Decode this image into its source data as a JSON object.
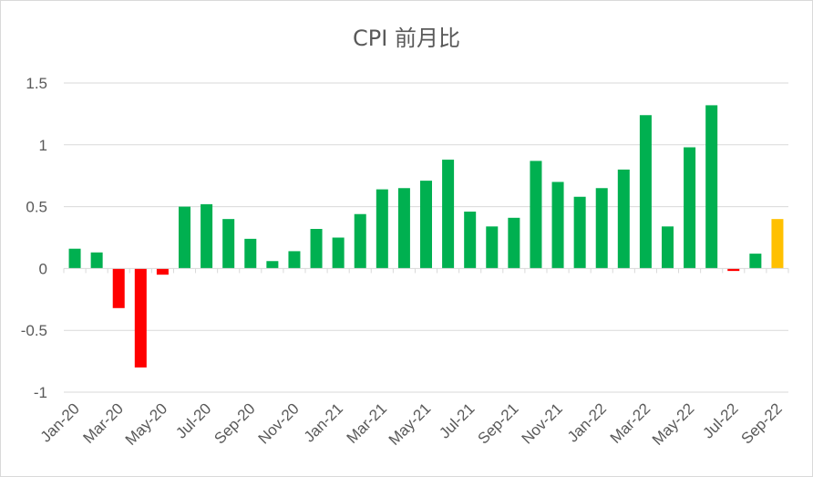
{
  "chart_data": {
    "type": "bar",
    "title": "CPI 前月比",
    "xlabel": "",
    "ylabel": "",
    "ylim": [
      -1,
      1.5
    ],
    "yticks": [
      "1.5",
      "1",
      "0.5",
      "0",
      "-0.5",
      "-1"
    ],
    "ytick_values": [
      1.5,
      1,
      0.5,
      0,
      -0.5,
      -1
    ],
    "grid": true,
    "legend": "none",
    "categories": [
      "Jan-20",
      "Feb-20",
      "Mar-20",
      "Apr-20",
      "May-20",
      "Jun-20",
      "Jul-20",
      "Aug-20",
      "Sep-20",
      "Oct-20",
      "Nov-20",
      "Dec-20",
      "Jan-21",
      "Feb-21",
      "Mar-21",
      "Apr-21",
      "May-21",
      "Jun-21",
      "Jul-21",
      "Aug-21",
      "Sep-21",
      "Oct-21",
      "Nov-21",
      "Dec-21",
      "Jan-22",
      "Feb-22",
      "Mar-22",
      "Apr-22",
      "May-22",
      "Jun-22",
      "Jul-22",
      "Aug-22",
      "Sep-22"
    ],
    "xtick_labels": [
      "Jan-20",
      "Mar-20",
      "May-20",
      "Jul-20",
      "Sep-20",
      "Nov-20",
      "Jan-21",
      "Mar-21",
      "May-21",
      "Jul-21",
      "Sep-21",
      "Nov-21",
      "Jan-22",
      "Mar-22",
      "May-22",
      "Jul-22",
      "Sep-22"
    ],
    "values": [
      0.16,
      0.13,
      -0.32,
      -0.8,
      -0.05,
      0.5,
      0.52,
      0.4,
      0.24,
      0.06,
      0.14,
      0.32,
      0.25,
      0.44,
      0.64,
      0.65,
      0.71,
      0.88,
      0.46,
      0.34,
      0.41,
      0.87,
      0.7,
      0.58,
      0.65,
      0.8,
      1.24,
      0.34,
      0.98,
      1.32,
      -0.02,
      0.12,
      0.4
    ],
    "bar_colors": [
      "#00b050",
      "#00b050",
      "#ff0000",
      "#ff0000",
      "#ff0000",
      "#00b050",
      "#00b050",
      "#00b050",
      "#00b050",
      "#00b050",
      "#00b050",
      "#00b050",
      "#00b050",
      "#00b050",
      "#00b050",
      "#00b050",
      "#00b050",
      "#00b050",
      "#00b050",
      "#00b050",
      "#00b050",
      "#00b050",
      "#00b050",
      "#00b050",
      "#00b050",
      "#00b050",
      "#00b050",
      "#00b050",
      "#00b050",
      "#00b050",
      "#ff0000",
      "#00b050",
      "#ffc000"
    ],
    "colors": {
      "positive": "#00b050",
      "negative": "#ff0000",
      "latest": "#ffc000",
      "grid": "#d9d9d9",
      "text": "#595959"
    }
  }
}
